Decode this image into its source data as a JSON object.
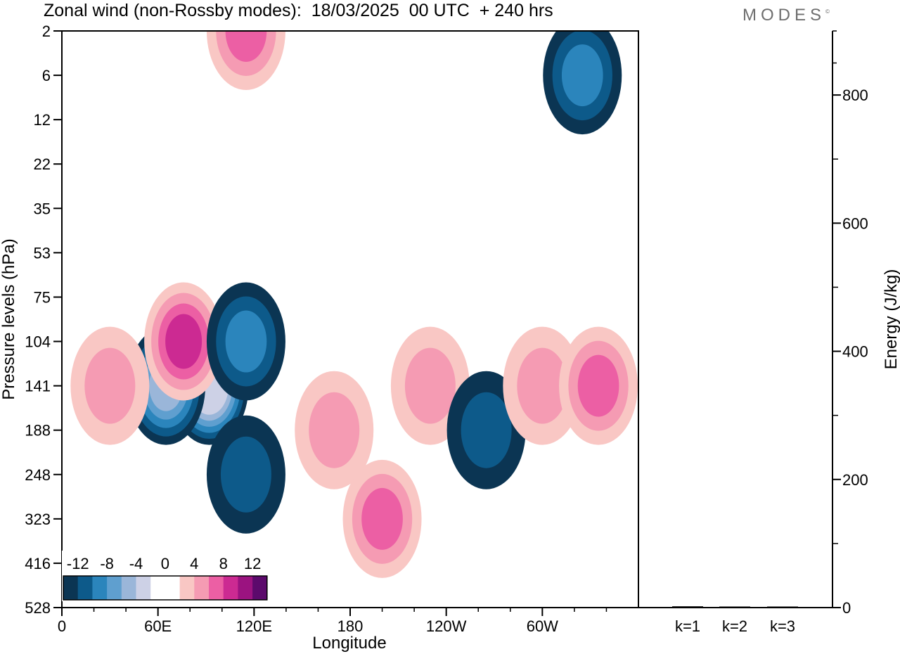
{
  "title": "Zonal wind (non-Rossby modes):  18/03/2025  00 UTC  + 240 hrs",
  "logo": "MODES",
  "colors": {
    "neg": [
      "#0b3553",
      "#0d5a8a",
      "#2b85bc",
      "#5f9fcf",
      "#9ab6d9",
      "#cdd1e6"
    ],
    "zero": "#ffffff",
    "pos": [
      "#f9c7c4",
      "#f59bb3",
      "#ec5fa4",
      "#cc2a92",
      "#9b1380",
      "#5c0a6c"
    ]
  },
  "colorbar": {
    "labels": [
      "-12",
      "-8",
      "-4",
      "0",
      "4",
      "8",
      "12"
    ]
  },
  "chart_data": [
    {
      "type": "heatmap",
      "title": "Zonal wind (non-Rossby modes):  18/03/2025  00 UTC  + 240 hrs",
      "xlabel": "Longitude",
      "ylabel": "Pressure levels (hPa)",
      "x_ticks": [
        "0",
        "60E",
        "120E",
        "180",
        "120W",
        "60W"
      ],
      "y_ticks": [
        "2",
        "6",
        "12",
        "22",
        "35",
        "53",
        "75",
        "104",
        "141",
        "188",
        "248",
        "323",
        "416",
        "528"
      ],
      "xlim": [
        0,
        360
      ],
      "value_range": [
        -14,
        14
      ],
      "features": [
        {
          "lon": 92,
          "lev": "141",
          "value": -14
        },
        {
          "lon": 65,
          "lev": "141",
          "value": -10
        },
        {
          "lon": 76,
          "lev": "104",
          "value": 8
        },
        {
          "lon": 115,
          "lev": "104",
          "value": -6
        },
        {
          "lon": 115,
          "lev": "248",
          "value": -4
        },
        {
          "lon": 30,
          "lev": "141",
          "value": 4
        },
        {
          "lon": 170,
          "lev": "188",
          "value": 4
        },
        {
          "lon": 200,
          "lev": "323",
          "value": 6
        },
        {
          "lon": 230,
          "lev": "141",
          "value": 4
        },
        {
          "lon": 265,
          "lev": "188",
          "value": -4
        },
        {
          "lon": 300,
          "lev": "141",
          "value": 4
        },
        {
          "lon": 335,
          "lev": "141",
          "value": 6
        },
        {
          "lon": 115,
          "lev": "2",
          "value": 6
        },
        {
          "lon": 325,
          "lev": "6",
          "value": -6
        }
      ]
    },
    {
      "type": "bar",
      "ylabel": "Energy (J/kg)",
      "categories": [
        "k=1",
        "k=2",
        "k=3"
      ],
      "values": [
        2,
        1.5,
        1
      ],
      "ylim": [
        0,
        900
      ],
      "y_ticks": [
        "0",
        "200",
        "400",
        "600",
        "800"
      ]
    }
  ]
}
